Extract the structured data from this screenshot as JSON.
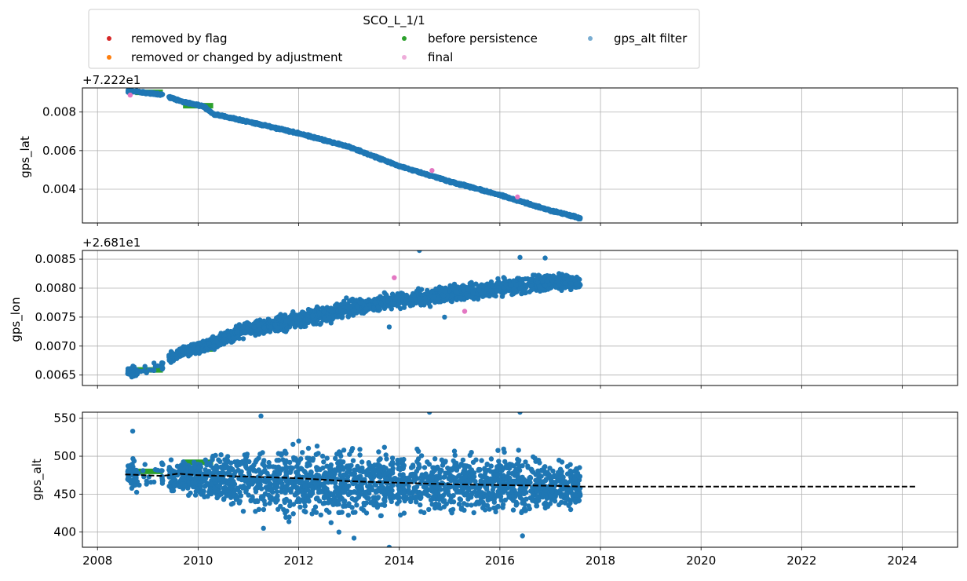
{
  "chart_data": {
    "type": "scatter",
    "legend": {
      "title": "SCO_L_1/1",
      "placement": "top-left above plots",
      "entries": [
        {
          "label": "removed by flag",
          "color": "#d62728"
        },
        {
          "label": "removed or changed by adjustment",
          "color": "#ff7f0e"
        },
        {
          "label": "before persistence",
          "color": "#2ca02c"
        },
        {
          "label": "final",
          "color": "#e377c2"
        },
        {
          "label": "gps_alt filter",
          "color": "#1f77b4"
        }
      ]
    },
    "x_axis": {
      "range": [
        2007.7,
        2025.1
      ],
      "ticks": [
        "2008",
        "2010",
        "2012",
        "2014",
        "2016",
        "2018",
        "2020",
        "2022",
        "2024"
      ],
      "grid": true
    },
    "panels": [
      {
        "ylabel": "gps_lat",
        "offset_label": "+7.222e1",
        "ylim": [
          0.00225,
          0.00925
        ],
        "yticks": [
          "0.004",
          "0.006",
          "0.008"
        ],
        "grid": true,
        "series": [
          {
            "name": "before persistence",
            "color": "#2ca02c",
            "style": "thick-steps",
            "segments": [
              [
                2008.75,
                2009.3,
                0.00902
              ],
              [
                2009.7,
                2010.3,
                0.00833
              ]
            ]
          },
          {
            "name": "gps_alt filter",
            "color": "#1f77b4",
            "style": "dense-band",
            "x": [
              2008.6,
              2009.3,
              2009.6,
              2010.1,
              2010.3,
              2011.0,
              2012.0,
              2013.0,
              2014.0,
              2015.0,
              2016.0,
              2017.0,
              2017.6
            ],
            "y": [
              0.0091,
              0.0089,
              0.0086,
              0.0083,
              0.0079,
              0.0075,
              0.0069,
              0.0062,
              0.0052,
              0.0044,
              0.0037,
              0.0029,
              0.0025
            ],
            "spread": 8e-05
          }
        ],
        "markers": [
          {
            "series": "final",
            "color": "#e377c2",
            "x": [
              2008.65,
              2014.65,
              2016.35
            ],
            "y": [
              0.00888,
              0.00497,
              0.0036
            ]
          }
        ]
      },
      {
        "ylabel": "gps_lon",
        "offset_label": "+2.681e1",
        "ylim": [
          0.00632,
          0.00865
        ],
        "yticks": [
          "0.0065",
          "0.0070",
          "0.0075",
          "0.0080",
          "0.0085"
        ],
        "grid": true,
        "series": [
          {
            "name": "before persistence",
            "color": "#2ca02c",
            "style": "thick-steps",
            "segments": [
              [
                2008.75,
                2009.3,
                0.00659
              ],
              [
                2009.7,
                2010.3,
                0.00695
              ]
            ]
          },
          {
            "name": "gps_alt filter",
            "color": "#1f77b4",
            "style": "dense-band",
            "x": [
              2008.6,
              2008.75,
              2009.3,
              2009.45,
              2009.7,
              2010.3,
              2011.0,
              2012.0,
              2013.0,
              2014.0,
              2015.0,
              2016.0,
              2017.0,
              2017.6
            ],
            "y": [
              0.00655,
              0.00655,
              0.00665,
              0.0068,
              0.0069,
              0.00705,
              0.0073,
              0.00745,
              0.00765,
              0.0078,
              0.0079,
              0.008,
              0.0081,
              0.0081
            ],
            "spread": [
              0.00012,
              0.00012,
              0.0001,
              0.00012,
              0.00012,
              0.00015,
              0.00018,
              0.0002,
              0.0002,
              0.0002,
              0.0002,
              0.0002,
              0.0002,
              0.00016
            ]
          }
        ],
        "markers": [
          {
            "series": "final",
            "color": "#e377c2",
            "x": [
              2013.9,
              2015.3
            ],
            "y": [
              0.00818,
              0.0076
            ]
          },
          {
            "series": "gps_alt filter",
            "color": "#1f77b4",
            "x": [
              2014.4,
              2014.9,
              2016.4,
              2016.9,
              2013.8
            ],
            "y": [
              0.00865,
              0.0075,
              0.00853,
              0.00852,
              0.00733
            ]
          }
        ]
      },
      {
        "ylabel": "gps_alt",
        "offset_label": "",
        "ylim": [
          380,
          558
        ],
        "yticks": [
          "400",
          "450",
          "500",
          "550"
        ],
        "grid": true,
        "series": [
          {
            "name": "before persistence",
            "color": "#2ca02c",
            "style": "thick-steps",
            "segments": [
              [
                2008.75,
                2009.3,
                480
              ],
              [
                2009.7,
                2010.3,
                492
              ]
            ]
          },
          {
            "name": "gps_alt filter",
            "color": "#1f77b4",
            "style": "dense-band",
            "x": [
              2008.6,
              2008.75,
              2009.3,
              2009.45,
              2009.7,
              2010.3,
              2011.0,
              2012.0,
              2013.0,
              2014.0,
              2015.0,
              2016.0,
              2017.0,
              2017.6
            ],
            "y": [
              475,
              475,
              475,
              472,
              472,
              470,
              468,
              468,
              465,
              465,
              463,
              462,
              460,
              460
            ],
            "spread": [
              25,
              25,
              25,
              28,
              28,
              40,
              55,
              60,
              60,
              55,
              55,
              55,
              45,
              40
            ]
          }
        ],
        "markers": [
          {
            "series": "gps_alt filter",
            "color": "#1f77b4",
            "x": [
              2008.7,
              2011.25,
              2012.0,
              2013.8,
              2014.6,
              2016.4,
              2011.3,
              2013.1,
              2016.45,
              2012.8
            ],
            "y": [
              533,
              553,
              520,
              380,
              558,
              558,
              405,
              392,
              395,
              400
            ]
          }
        ],
        "reference_line": {
          "style": "dashed",
          "color": "#000000",
          "x": [
            2008.55,
            2009.3,
            2009.6,
            2010.0,
            2011.0,
            2012.0,
            2013.0,
            2014.0,
            2015.0,
            2016.0,
            2017.0,
            2017.6,
            2024.3
          ],
          "y": [
            476,
            474,
            477,
            475,
            473,
            471,
            467,
            465,
            463,
            462,
            461,
            460,
            460
          ]
        }
      }
    ]
  }
}
